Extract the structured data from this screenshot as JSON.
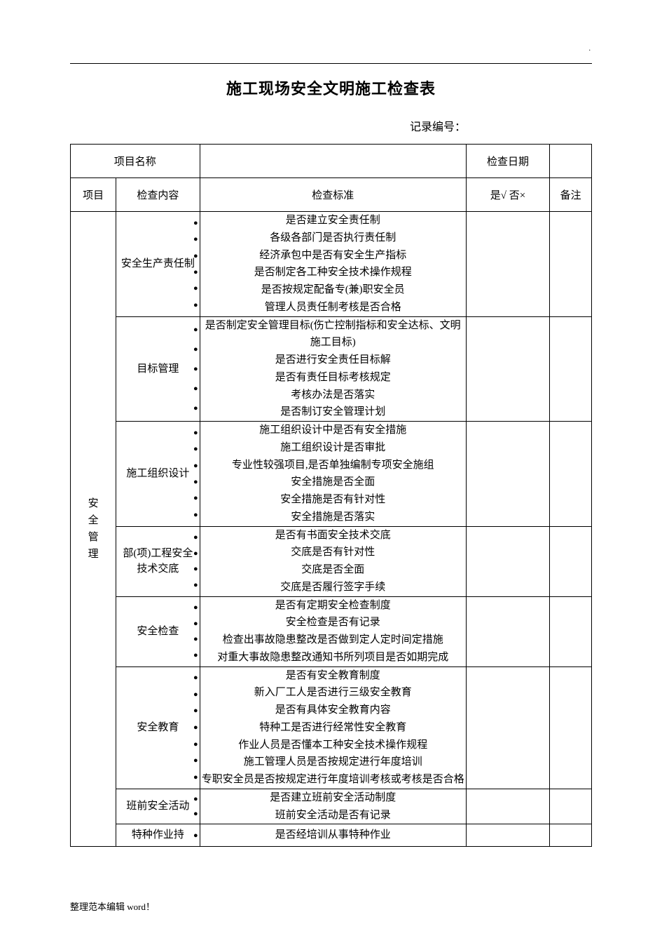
{
  "title": "施工现场安全文明施工检查表",
  "record_no_label": "记录编号：",
  "header": {
    "project_name_label": "项目名称",
    "check_date_label": "检查日期",
    "col_project": "项目",
    "col_item": "检查内容",
    "col_standard": "检查标准",
    "col_yesno": "是√ 否×",
    "col_note": "备注"
  },
  "category": "安全管理",
  "rows": [
    {
      "item": "安全生产责任制",
      "standards": [
        "是否建立安全责任制",
        "各级各部门是否执行责任制",
        "经济承包中是否有安全生产指标",
        "是否制定各工种安全技术操作规程",
        "是否按规定配备专(兼)职安全员",
        "管理人员责任制考核是否合格"
      ]
    },
    {
      "item": "目标管理",
      "standards": [
        "是否制定安全管理目标(伤亡控制指标和安全达标、文明施工目标)",
        "是否进行安全责任目标解",
        "是否有责任目标考核规定",
        "考核办法是否落实",
        "是否制订安全管理计划"
      ]
    },
    {
      "item": "施工组织设计",
      "standards": [
        "施工组织设计中是否有安全措施",
        "施工组织设计是否审批",
        "专业性较强项目,是否单独编制专项安全施组",
        "安全措施是否全面",
        "安全措施是否有针对性",
        "安全措施是否落实"
      ]
    },
    {
      "item": "部(项)工程安全技术交底",
      "standards": [
        "是否有书面安全技术交底",
        "交底是否有针对性",
        "交底是否全面",
        "交底是否履行签字手续"
      ]
    },
    {
      "item": "安全检查",
      "standards": [
        "是否有定期安全检查制度",
        "安全检查是否有记录",
        "检查出事故隐患整改是否做到定人定时间定措施",
        "对重大事故隐患整改通知书所列项目是否如期完成"
      ]
    },
    {
      "item": "安全教育",
      "standards": [
        "是否有安全教育制度",
        "新入厂工人是否进行三级安全教育",
        "是否有具体安全教育内容",
        "特种工是否进行经常性安全教育",
        "作业人员是否懂本工种安全技术操作规程",
        "施工管理人员是否按规定进行年度培训",
        "专职安全员是否按规定进行年度培训考核或考核是否合格"
      ]
    },
    {
      "item": "班前安全活动",
      "standards": [
        "是否建立班前安全活动制度",
        "班前安全活动是否有记录"
      ]
    },
    {
      "item": "特种作业持",
      "standards": [
        "是否经培训从事特种作业"
      ]
    }
  ],
  "footer": "整理范本编辑 word！",
  "colors": {
    "text": "#000000",
    "bg": "#ffffff",
    "border": "#000000"
  },
  "font": {
    "family": "SimSun",
    "title_size": 22,
    "body_size": 15
  }
}
